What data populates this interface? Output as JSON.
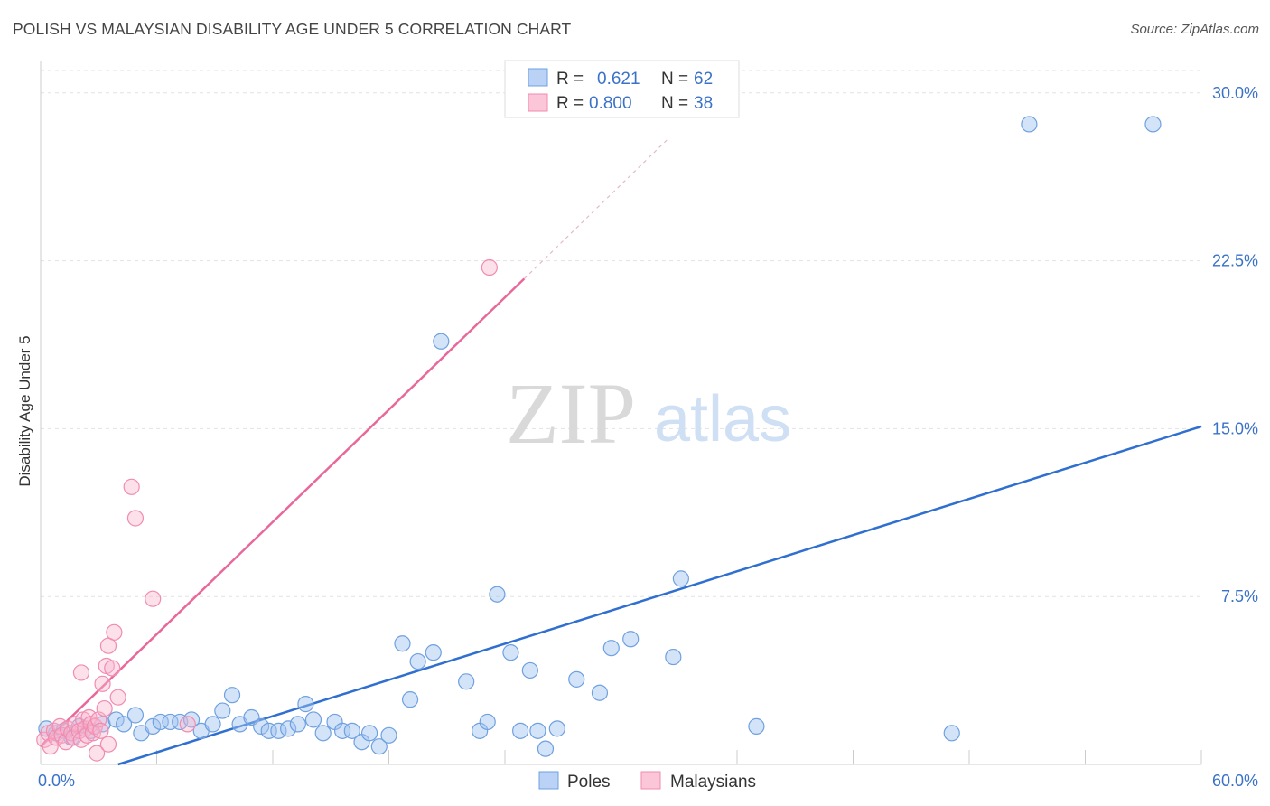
{
  "title": "POLISH VS MALAYSIAN DISABILITY AGE UNDER 5 CORRELATION CHART",
  "source": "Source: ZipAtlas.com",
  "watermark": {
    "zip": "ZIP",
    "atlas": "atlas"
  },
  "colors": {
    "poles": "#6fa0e0",
    "poles_line": "#2f6fcf",
    "malaysians": "#f28bb0",
    "malaysians_line": "#e8689a",
    "tick_label": "#3a72c8"
  },
  "legend": [
    {
      "r_label": "R =",
      "r_value": "0.621",
      "n_label": "N =",
      "n_value": "62"
    },
    {
      "r_label": "R =",
      "r_value": "0.800",
      "n_label": "N =",
      "n_value": "38"
    }
  ],
  "bottom_legend": [
    "Poles",
    "Malaysians"
  ],
  "chart_data": {
    "type": "scatter",
    "title": "POLISH VS MALAYSIAN DISABILITY AGE UNDER 5 CORRELATION CHART",
    "xlabel": "",
    "ylabel": "Disability Age Under 5",
    "xlim": [
      0,
      60
    ],
    "ylim": [
      0,
      31
    ],
    "x_tick_labels": [
      {
        "value": 0,
        "label": "0.0%"
      },
      {
        "value": 60,
        "label": "60.0%"
      }
    ],
    "y_tick_labels": [
      {
        "value": 7.5,
        "label": "7.5%"
      },
      {
        "value": 15,
        "label": "15.0%"
      },
      {
        "value": 22.5,
        "label": "22.5%"
      },
      {
        "value": 30,
        "label": "30.0%"
      }
    ],
    "series": [
      {
        "name": "Poles",
        "trend": {
          "x": [
            4,
            60
          ],
          "y": [
            0,
            15.1
          ]
        },
        "points": [
          [
            0.3,
            1.6
          ],
          [
            0.8,
            1.4
          ],
          [
            1.2,
            1.5
          ],
          [
            1.6,
            1.2
          ],
          [
            2.0,
            1.7
          ],
          [
            2.6,
            1.5
          ],
          [
            3.2,
            1.8
          ],
          [
            3.9,
            2.0
          ],
          [
            4.3,
            1.8
          ],
          [
            4.9,
            2.2
          ],
          [
            5.2,
            1.4
          ],
          [
            5.8,
            1.7
          ],
          [
            6.2,
            1.9
          ],
          [
            6.7,
            1.9
          ],
          [
            7.2,
            1.9
          ],
          [
            7.8,
            2.0
          ],
          [
            8.3,
            1.5
          ],
          [
            8.9,
            1.8
          ],
          [
            9.4,
            2.4
          ],
          [
            9.9,
            3.1
          ],
          [
            10.3,
            1.8
          ],
          [
            10.9,
            2.1
          ],
          [
            11.4,
            1.7
          ],
          [
            11.8,
            1.5
          ],
          [
            12.3,
            1.5
          ],
          [
            12.8,
            1.6
          ],
          [
            13.3,
            1.8
          ],
          [
            13.7,
            2.7
          ],
          [
            14.1,
            2.0
          ],
          [
            14.6,
            1.4
          ],
          [
            15.2,
            1.9
          ],
          [
            15.6,
            1.5
          ],
          [
            16.1,
            1.5
          ],
          [
            16.6,
            1.0
          ],
          [
            17.0,
            1.4
          ],
          [
            17.5,
            0.8
          ],
          [
            18.0,
            1.3
          ],
          [
            18.7,
            5.4
          ],
          [
            19.1,
            2.9
          ],
          [
            19.5,
            4.6
          ],
          [
            20.3,
            5.0
          ],
          [
            20.7,
            18.9
          ],
          [
            22.0,
            3.7
          ],
          [
            22.7,
            1.5
          ],
          [
            23.1,
            1.9
          ],
          [
            23.6,
            7.6
          ],
          [
            24.3,
            5.0
          ],
          [
            24.8,
            1.5
          ],
          [
            25.3,
            4.2
          ],
          [
            25.7,
            1.5
          ],
          [
            26.1,
            0.7
          ],
          [
            26.7,
            1.6
          ],
          [
            27.7,
            3.8
          ],
          [
            28.9,
            3.2
          ],
          [
            29.5,
            5.2
          ],
          [
            30.5,
            5.6
          ],
          [
            32.7,
            4.8
          ],
          [
            33.1,
            8.3
          ],
          [
            37.0,
            1.7
          ],
          [
            47.1,
            1.4
          ],
          [
            51.1,
            28.6
          ],
          [
            57.5,
            28.6
          ]
        ]
      },
      {
        "name": "Malaysians",
        "trend": {
          "x": [
            0,
            25
          ],
          "y": [
            0.8,
            21.7
          ]
        },
        "trend_extension": {
          "x": [
            25,
            32.5
          ],
          "y": [
            21.7,
            28.0
          ]
        },
        "points": [
          [
            0.2,
            1.1
          ],
          [
            0.4,
            1.4
          ],
          [
            0.5,
            0.8
          ],
          [
            0.7,
            1.5
          ],
          [
            0.8,
            1.2
          ],
          [
            1.0,
            1.7
          ],
          [
            1.1,
            1.3
          ],
          [
            1.3,
            1.0
          ],
          [
            1.4,
            1.6
          ],
          [
            1.6,
            1.4
          ],
          [
            1.7,
            1.2
          ],
          [
            1.8,
            1.8
          ],
          [
            2.0,
            1.5
          ],
          [
            2.1,
            1.1
          ],
          [
            2.2,
            2.0
          ],
          [
            2.3,
            1.6
          ],
          [
            2.4,
            1.3
          ],
          [
            2.5,
            2.1
          ],
          [
            2.6,
            1.8
          ],
          [
            2.7,
            1.4
          ],
          [
            2.8,
            1.7
          ],
          [
            2.9,
            0.5
          ],
          [
            3.0,
            2.0
          ],
          [
            3.1,
            1.5
          ],
          [
            3.2,
            3.6
          ],
          [
            3.3,
            2.5
          ],
          [
            3.4,
            4.4
          ],
          [
            3.5,
            0.9
          ],
          [
            2.1,
            4.1
          ],
          [
            3.5,
            5.3
          ],
          [
            3.7,
            4.3
          ],
          [
            3.8,
            5.9
          ],
          [
            4.0,
            3.0
          ],
          [
            7.6,
            1.8
          ],
          [
            5.8,
            7.4
          ],
          [
            4.7,
            12.4
          ],
          [
            4.9,
            11.0
          ],
          [
            23.2,
            22.2
          ]
        ]
      }
    ]
  }
}
